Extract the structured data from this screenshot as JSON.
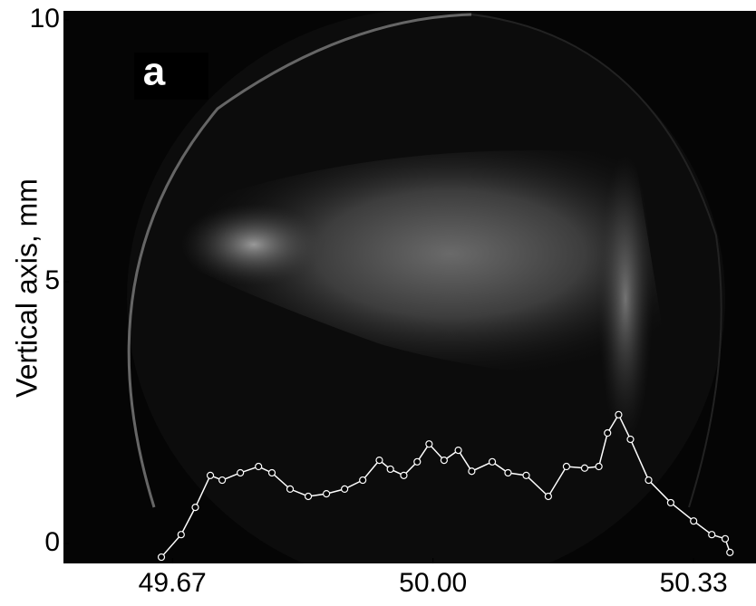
{
  "chart_data": {
    "type": "line",
    "annotation": "a",
    "y_label": "Vertical axis, mm",
    "x": [
      49.656,
      49.681,
      49.699,
      49.718,
      49.733,
      49.756,
      49.779,
      49.796,
      49.819,
      49.842,
      49.865,
      49.888,
      49.911,
      49.932,
      49.946,
      49.963,
      49.98,
      49.995,
      50.014,
      50.032,
      50.049,
      50.075,
      50.095,
      50.118,
      50.146,
      50.169,
      50.192,
      50.21,
      50.221,
      50.235,
      50.25,
      50.273,
      50.301,
      50.33,
      50.353,
      50.37,
      50.376
    ],
    "values": [
      -0.26,
      0.17,
      0.69,
      1.3,
      1.21,
      1.35,
      1.47,
      1.35,
      1.04,
      0.9,
      0.95,
      1.04,
      1.21,
      1.59,
      1.42,
      1.3,
      1.56,
      1.9,
      1.59,
      1.78,
      1.38,
      1.56,
      1.35,
      1.3,
      0.9,
      1.47,
      1.44,
      1.47,
      2.11,
      2.46,
      1.99,
      1.21,
      0.78,
      0.43,
      0.17,
      0.09,
      -0.17
    ],
    "color": "#ffffff",
    "xlim": [
      49.532,
      50.409
    ],
    "ylim": [
      -0.38,
      10.17
    ],
    "xticks": [
      49.67,
      {
        "value": 50,
        "label": "50.00"
      },
      50.33
    ],
    "yticks": [
      0,
      5,
      10
    ]
  }
}
